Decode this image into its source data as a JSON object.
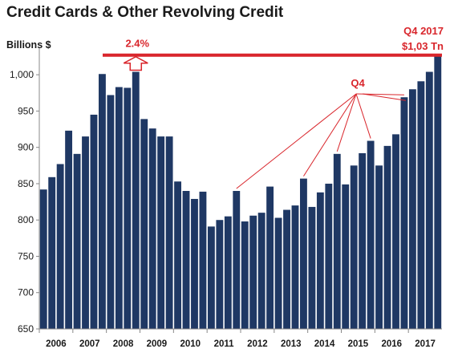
{
  "colors": {
    "bar": "#1f3864",
    "accent": "#d9262c",
    "axis": "#888888",
    "text": "#1a1a1a"
  },
  "chart_data": {
    "type": "bar",
    "title": "Credit Cards & Other Revolving Credit",
    "ylabel": "Billions $",
    "xlabel": "",
    "ylim": [
      650,
      1030
    ],
    "yticks": [
      650,
      700,
      750,
      800,
      850,
      900,
      950,
      1000
    ],
    "ytick_labels": [
      "650",
      "700",
      "750",
      "800",
      "850",
      "900",
      "950",
      "1,000"
    ],
    "years": [
      "2006",
      "2007",
      "2008",
      "2009",
      "2010",
      "2011",
      "2012",
      "2013",
      "2014",
      "2015",
      "2016",
      "2017"
    ],
    "categories": [
      "2006 Q1",
      "2006 Q2",
      "2006 Q3",
      "2006 Q4",
      "2007 Q1",
      "2007 Q2",
      "2007 Q3",
      "2007 Q4",
      "2008 Q1",
      "2008 Q2",
      "2008 Q3",
      "2008 Q4",
      "2009 Q1",
      "2009 Q2",
      "2009 Q3",
      "2009 Q4",
      "2010 Q1",
      "2010 Q2",
      "2010 Q3",
      "2010 Q4",
      "2011 Q1",
      "2011 Q2",
      "2011 Q3",
      "2011 Q4",
      "2012 Q1",
      "2012 Q2",
      "2012 Q3",
      "2012 Q4",
      "2013 Q1",
      "2013 Q2",
      "2013 Q3",
      "2013 Q4",
      "2014 Q1",
      "2014 Q2",
      "2014 Q3",
      "2014 Q4",
      "2015 Q1",
      "2015 Q2",
      "2015 Q3",
      "2015 Q4",
      "2016 Q1",
      "2016 Q2",
      "2016 Q3",
      "2016 Q4",
      "2017 Q1",
      "2017 Q2",
      "2017 Q3",
      "2017 Q4"
    ],
    "values": [
      842,
      859,
      877,
      923,
      891,
      915,
      945,
      1001,
      972,
      983,
      982,
      1004,
      939,
      926,
      915,
      915,
      853,
      840,
      829,
      839,
      791,
      800,
      805,
      840,
      798,
      806,
      810,
      846,
      803,
      814,
      820,
      857,
      818,
      838,
      850,
      891,
      849,
      875,
      892,
      909,
      875,
      902,
      918,
      969,
      980,
      991,
      1004,
      1027
    ],
    "reference_line": 1027,
    "annotations": {
      "pct": "2.4%",
      "q4": "Q4",
      "latest_line1": "Q4 2017",
      "latest_line2": "$1,03 Tn"
    }
  }
}
